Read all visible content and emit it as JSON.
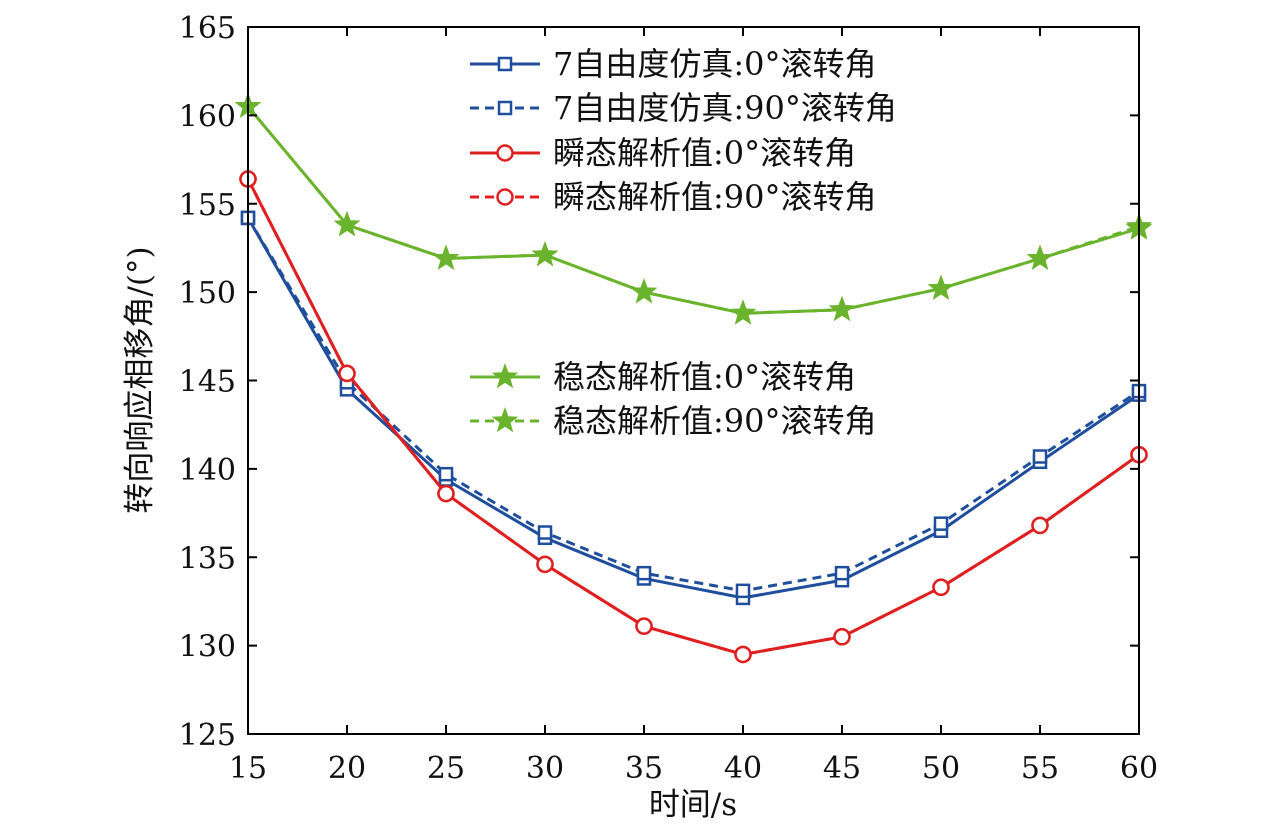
{
  "chart_data": {
    "type": "line",
    "title": "",
    "xlabel": "时间/s",
    "ylabel": "转向响应相移角/(°)",
    "xlim": [
      15,
      60
    ],
    "ylim": [
      125,
      165
    ],
    "x": [
      15,
      20,
      25,
      30,
      35,
      40,
      45,
      50,
      55,
      60
    ],
    "xticks": [
      "15",
      "20",
      "25",
      "30",
      "35",
      "40",
      "45",
      "50",
      "55",
      "60"
    ],
    "yticks": [
      "125",
      "130",
      "135",
      "140",
      "145",
      "150",
      "155",
      "160",
      "165"
    ],
    "grid": false,
    "legend_position": "top-right",
    "series": [
      {
        "name": "7自由度仿真:0°滚转角",
        "color": "#1f4e9c",
        "dash": "solid",
        "marker": "square",
        "values": [
          154.2,
          144.5,
          139.4,
          136.1,
          133.8,
          132.7,
          133.7,
          136.5,
          140.4,
          144.2
        ]
      },
      {
        "name": "7自由度仿真:90°滚转角",
        "color": "#1f4e9c",
        "dash": "dashed",
        "marker": "square",
        "values": [
          154.2,
          144.9,
          139.7,
          136.4,
          134.1,
          133.1,
          134.1,
          136.9,
          140.7,
          144.4
        ]
      },
      {
        "name": "瞬态解析值:0°滚转角",
        "color": "#e02020",
        "dash": "solid",
        "marker": "circle",
        "values": [
          156.4,
          145.4,
          138.6,
          134.6,
          131.1,
          129.5,
          130.5,
          133.3,
          136.8,
          140.8
        ]
      },
      {
        "name": "瞬态解析值:90°滚转角",
        "color": "#e02020",
        "dash": "dashed",
        "marker": "circle",
        "values": [
          156.4,
          145.4,
          138.6,
          134.6,
          131.1,
          129.5,
          130.5,
          133.3,
          136.8,
          140.8
        ]
      },
      {
        "name": "稳态解析值:0°滚转角",
        "color": "#6ab42d",
        "dash": "solid",
        "marker": "star",
        "values": [
          160.5,
          153.8,
          151.9,
          152.1,
          150.0,
          148.8,
          149.0,
          150.2,
          151.9,
          153.6
        ]
      },
      {
        "name": "稳态解析值:90°滚转角",
        "color": "#6ab42d",
        "dash": "dashed",
        "marker": "star",
        "values": [
          160.5,
          153.8,
          151.9,
          152.1,
          150.0,
          148.8,
          149.0,
          150.2,
          151.9,
          153.7
        ]
      }
    ]
  }
}
